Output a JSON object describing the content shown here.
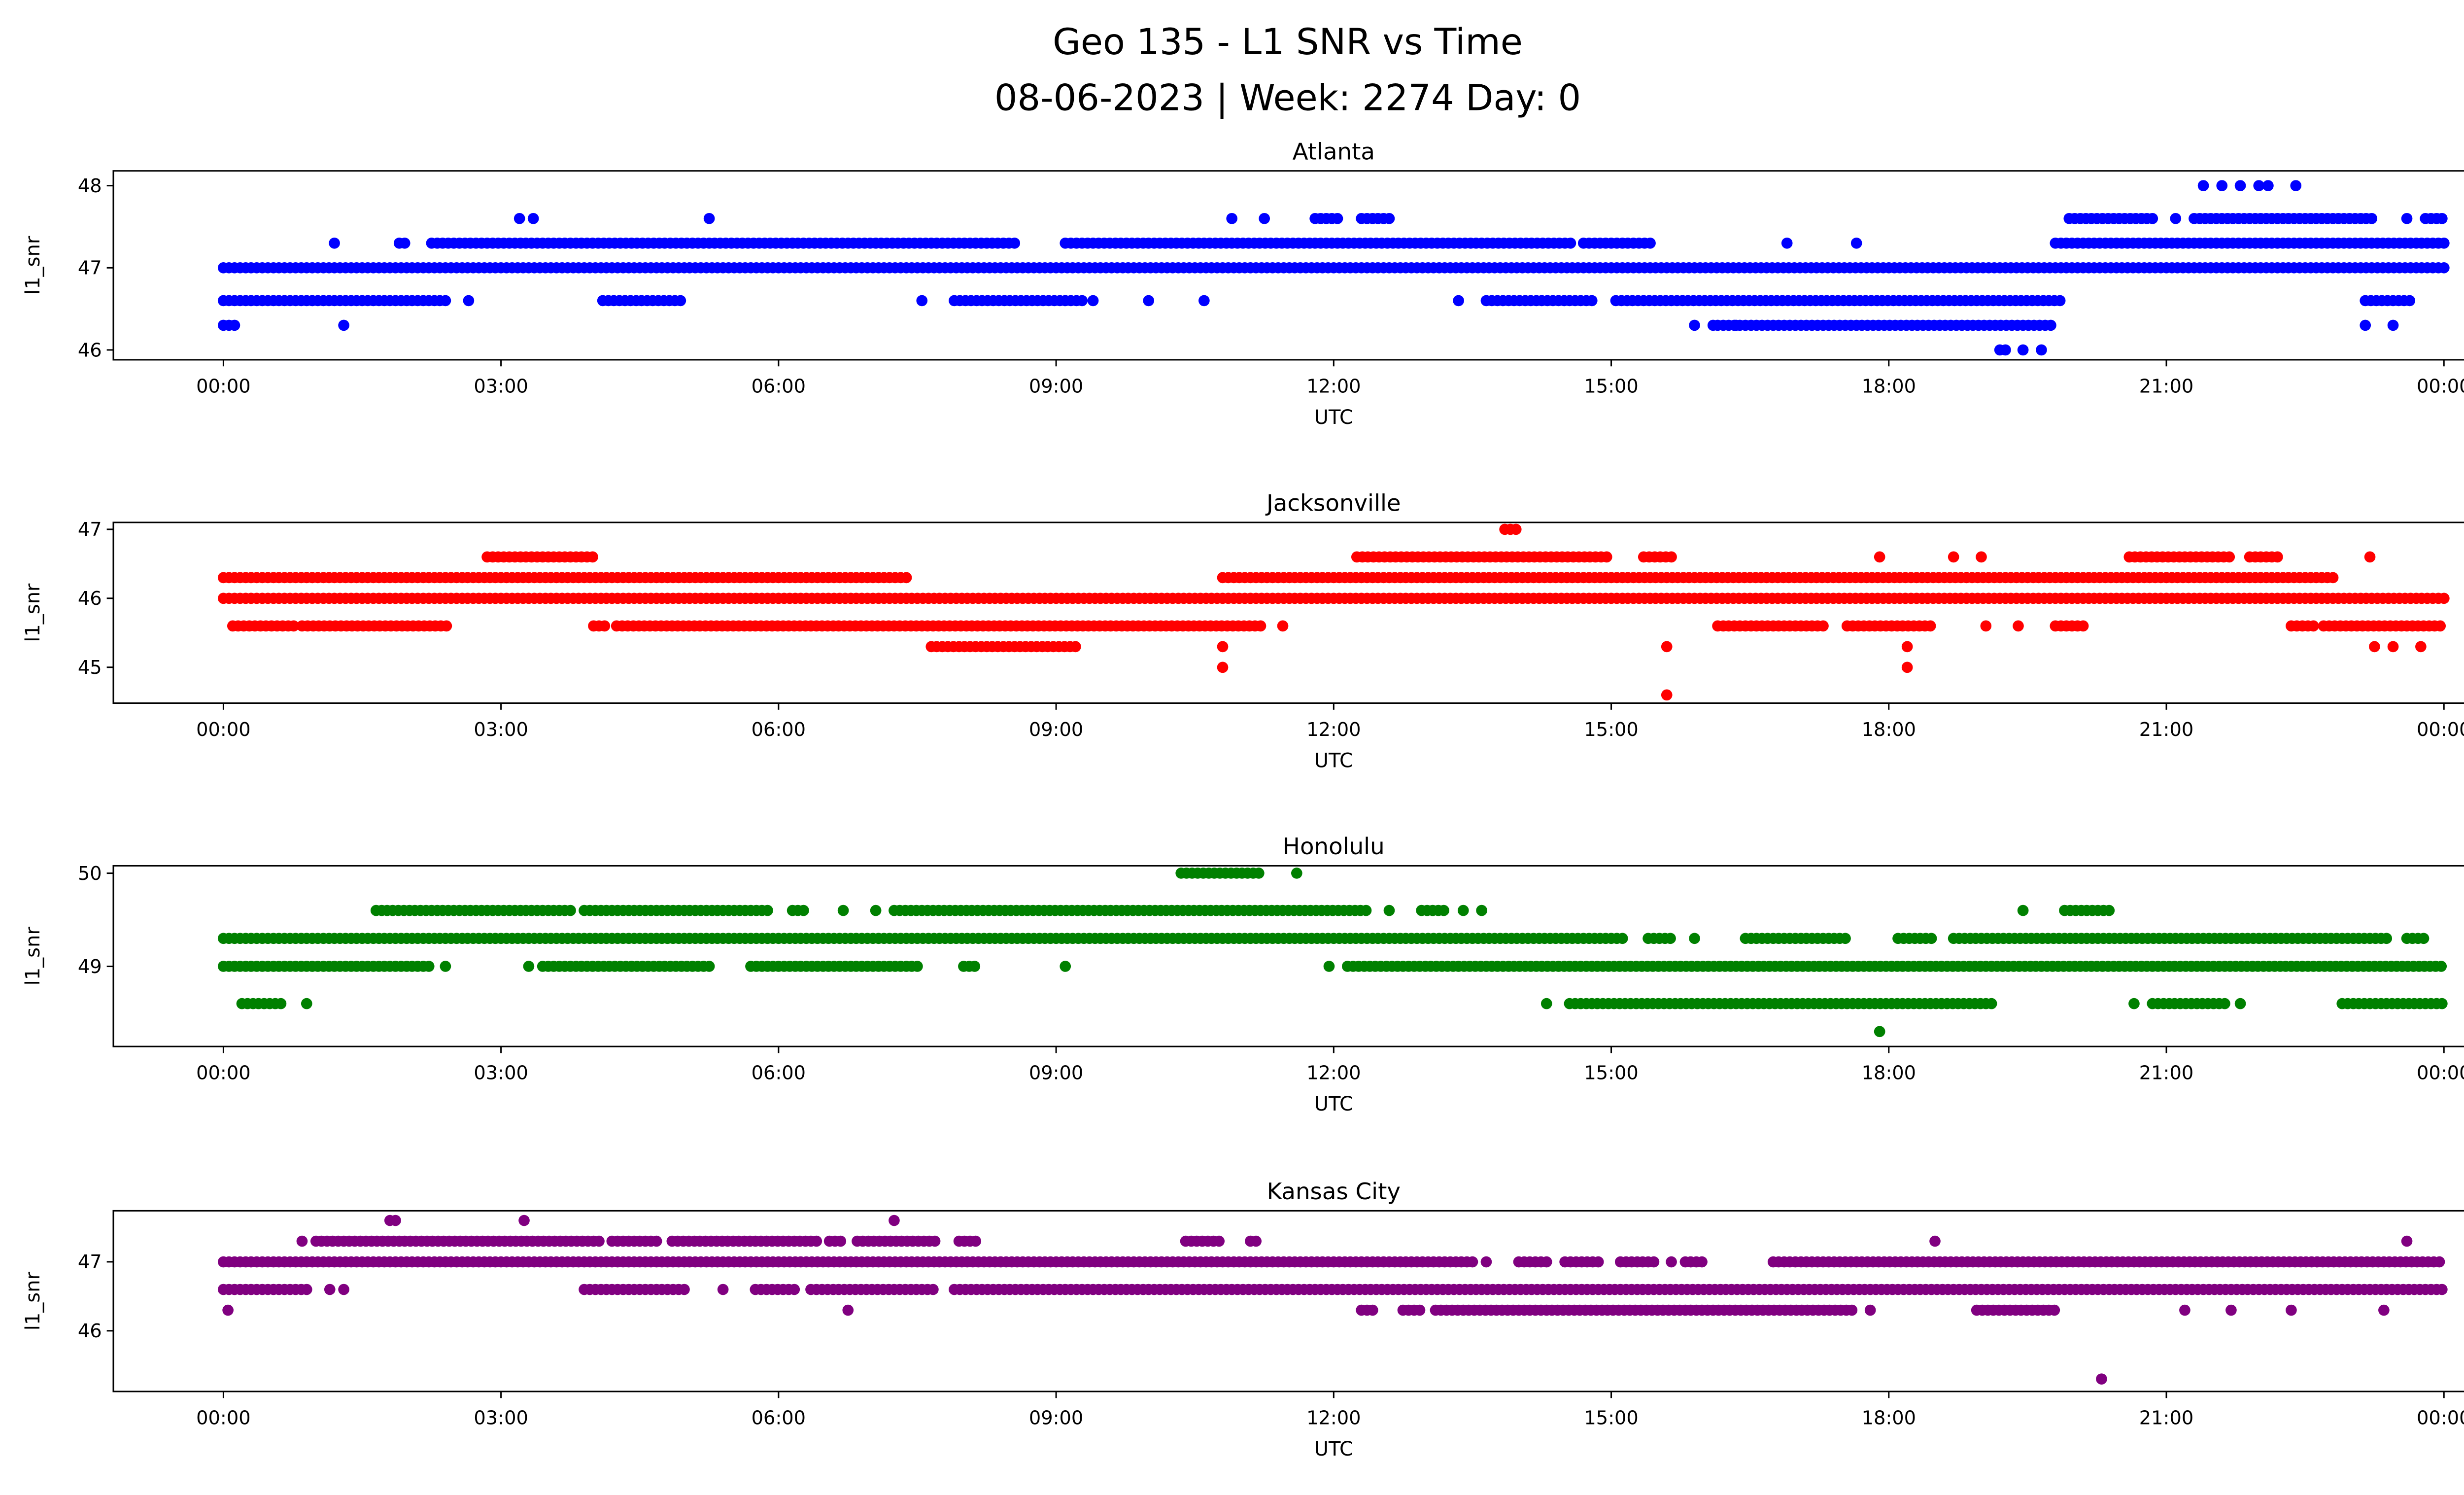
{
  "title": "Geo 135 - L1 SNR vs Time",
  "subtitle": "08-06-2023 | Week: 2274 Day: 0",
  "chart_data": [
    {
      "type": "scatter",
      "title": "Atlanta",
      "xlabel": "UTC",
      "ylabel": "l1_snr",
      "color": "#0000ff",
      "xlim_hours": [
        -1.19,
        25.19
      ],
      "ylim": [
        45.88,
        48.18
      ],
      "yticks": [
        46,
        47,
        48
      ],
      "levels": [
        {
          "y": 47.0,
          "runs": [
            [
              0,
              24
            ]
          ],
          "points": []
        },
        {
          "y": 46.6,
          "runs": [
            [
              0,
              2.4
            ],
            [
              4.1,
              4.95
            ],
            [
              7.9,
              9.3
            ],
            [
              13.65,
              14.8
            ],
            [
              15.05,
              19.9
            ],
            [
              23.15,
              23.65
            ]
          ],
          "points": [
            2.65,
            7.55,
            9.4,
            10.0,
            10.6,
            13.35
          ]
        },
        {
          "y": 46.3,
          "runs": [
            [
              0,
              0.15
            ],
            [
              16.15,
              19.8
            ]
          ],
          "points": [
            1.3,
            15.9,
            16.1,
            16.35,
            23.15,
            23.45
          ]
        },
        {
          "y": 46.0,
          "runs": [
            [
              19.2,
              19.3
            ]
          ],
          "points": [
            19.45,
            19.65
          ]
        },
        {
          "y": 47.3,
          "runs": [
            [
              1.9,
              2.0
            ],
            [
              2.25,
              8.6
            ],
            [
              9.1,
              14.6
            ],
            [
              14.7,
              15.45
            ],
            [
              19.8,
              24
            ]
          ],
          "points": [
            1.2,
            16.9,
            17.65
          ]
        },
        {
          "y": 47.6,
          "runs": [
            [
              11.8,
              12.05
            ],
            [
              12.3,
              12.65
            ],
            [
              19.95,
              20.85
            ],
            [
              21.3,
              23.25
            ],
            [
              23.8,
              24
            ]
          ],
          "points": [
            3.2,
            3.35,
            5.25,
            10.9,
            11.25,
            21.1,
            23.6
          ]
        },
        {
          "y": 48.0,
          "runs": [],
          "points": [
            21.4,
            21.6,
            21.8,
            22.0,
            22.1,
            22.4
          ]
        }
      ]
    },
    {
      "type": "scatter",
      "title": "Jacksonville",
      "xlabel": "UTC",
      "ylabel": "l1_snr",
      "color": "#ff0000",
      "xlim_hours": [
        -1.19,
        25.19
      ],
      "ylim": [
        44.48,
        47.1
      ],
      "yticks": [
        45,
        46,
        47
      ],
      "levels": [
        {
          "y": 46.0,
          "runs": [
            [
              0,
              24
            ]
          ],
          "points": []
        },
        {
          "y": 46.3,
          "runs": [
            [
              0,
              7.4
            ],
            [
              10.8,
              22.8
            ]
          ],
          "points": []
        },
        {
          "y": 46.6,
          "runs": [
            [
              2.85,
              4.0
            ],
            [
              12.25,
              15.0
            ],
            [
              15.35,
              15.7
            ],
            [
              20.6,
              21.7
            ],
            [
              21.9,
              22.25
            ]
          ],
          "points": [
            17.9,
            18.7,
            19.0,
            23.2
          ]
        },
        {
          "y": 47.0,
          "runs": [
            [
              13.85,
              14.0
            ]
          ],
          "points": []
        },
        {
          "y": 45.6,
          "runs": [
            [
              0.1,
              0.8
            ],
            [
              0.85,
              2.45
            ],
            [
              4.0,
              4.15
            ],
            [
              4.25,
              11.25
            ],
            [
              16.15,
              17.3
            ],
            [
              17.55,
              18.5
            ],
            [
              19.8,
              20.15
            ],
            [
              22.35,
              22.6
            ],
            [
              22.7,
              24
            ]
          ],
          "points": [
            11.45,
            19.05,
            19.4
          ]
        },
        {
          "y": 45.3,
          "runs": [
            [
              7.65,
              9.25
            ]
          ],
          "points": [
            10.8,
            15.6,
            18.2,
            23.25,
            23.45,
            23.75
          ]
        },
        {
          "y": 45.0,
          "runs": [],
          "points": [
            10.8,
            18.2
          ]
        },
        {
          "y": 44.6,
          "runs": [],
          "points": [
            15.6
          ]
        }
      ]
    },
    {
      "type": "scatter",
      "title": "Honolulu",
      "xlabel": "UTC",
      "ylabel": "l1_snr",
      "color": "#008000",
      "xlim_hours": [
        -1.19,
        25.19
      ],
      "ylim": [
        48.14,
        50.08
      ],
      "yticks": [
        49,
        50
      ],
      "levels": [
        {
          "y": 49.3,
          "runs": [
            [
              0,
              15.15
            ],
            [
              15.4,
              15.65
            ],
            [
              16.45,
              17.55
            ],
            [
              18.1,
              18.5
            ],
            [
              18.7,
              23.4
            ],
            [
              23.6,
              23.8
            ]
          ],
          "points": [
            15.9
          ]
        },
        {
          "y": 49.0,
          "runs": [
            [
              0,
              2.25
            ],
            [
              3.45,
              5.25
            ],
            [
              5.7,
              7.55
            ],
            [
              8.0,
              8.15
            ],
            [
              12.15,
              24
            ]
          ],
          "points": [
            2.4,
            3.3,
            9.1,
            11.95
          ]
        },
        {
          "y": 49.6,
          "runs": [
            [
              1.65,
              3.75
            ],
            [
              3.9,
              5.9
            ],
            [
              6.15,
              6.3
            ],
            [
              7.25,
              12.35
            ],
            [
              12.95,
              13.2
            ],
            [
              19.9,
              20.4
            ]
          ],
          "points": [
            6.7,
            7.05,
            12.6,
            13.4,
            13.6,
            19.45
          ]
        },
        {
          "y": 50.0,
          "runs": [
            [
              10.35,
              11.2
            ]
          ],
          "points": [
            11.6
          ]
        },
        {
          "y": 48.6,
          "runs": [
            [
              0.2,
              0.65
            ],
            [
              14.55,
              19.15
            ],
            [
              20.85,
              21.65
            ],
            [
              22.9,
              24
            ]
          ],
          "points": [
            0.9,
            14.3,
            20.65,
            21.8
          ]
        },
        {
          "y": 48.3,
          "runs": [],
          "points": [
            17.9
          ]
        }
      ]
    },
    {
      "type": "scatter",
      "title": "Kansas City",
      "xlabel": "UTC",
      "ylabel": "l1_snr",
      "color": "#800080",
      "xlim_hours": [
        -1.19,
        25.19
      ],
      "ylim": [
        45.12,
        47.74
      ],
      "yticks": [
        46,
        47
      ],
      "levels": [
        {
          "y": 47.0,
          "runs": [
            [
              0,
              13.55
            ],
            [
              14.0,
              14.3
            ],
            [
              14.5,
              14.9
            ],
            [
              15.1,
              15.5
            ],
            [
              15.8,
              16.0
            ],
            [
              16.75,
              24
            ]
          ],
          "points": [
            13.65,
            15.65
          ]
        },
        {
          "y": 46.6,
          "runs": [
            [
              0,
              0.95
            ],
            [
              3.9,
              5.0
            ],
            [
              5.75,
              6.2
            ],
            [
              6.35,
              7.7
            ],
            [
              7.9,
              24
            ]
          ],
          "points": [
            1.15,
            1.3,
            5.4
          ]
        },
        {
          "y": 47.3,
          "runs": [
            [
              1.0,
              4.1
            ],
            [
              4.2,
              4.7
            ],
            [
              4.85,
              6.45
            ],
            [
              6.55,
              6.7
            ],
            [
              6.85,
              7.7
            ],
            [
              7.95,
              8.15
            ],
            [
              10.4,
              10.8
            ],
            [
              11.1,
              11.2
            ]
          ],
          "points": [
            0.85,
            18.5,
            23.6
          ]
        },
        {
          "y": 47.6,
          "runs": [
            [
              1.8,
              1.9
            ]
          ],
          "points": [
            3.25,
            7.25
          ]
        },
        {
          "y": 46.3,
          "runs": [
            [
              12.3,
              12.45
            ],
            [
              12.75,
              12.95
            ],
            [
              13.1,
              17.65
            ],
            [
              18.95,
              19.8
            ]
          ],
          "points": [
            0.05,
            6.75,
            17.8,
            21.2,
            21.7,
            22.35,
            23.35
          ]
        },
        {
          "y": 45.3,
          "runs": [],
          "points": [
            20.3
          ]
        }
      ]
    }
  ],
  "xticks": {
    "hours": [
      0,
      3,
      6,
      9,
      12,
      15,
      18,
      21,
      24
    ],
    "labels": [
      "00:00",
      "03:00",
      "06:00",
      "09:00",
      "12:00",
      "15:00",
      "18:00",
      "21:00",
      "00:00"
    ]
  }
}
